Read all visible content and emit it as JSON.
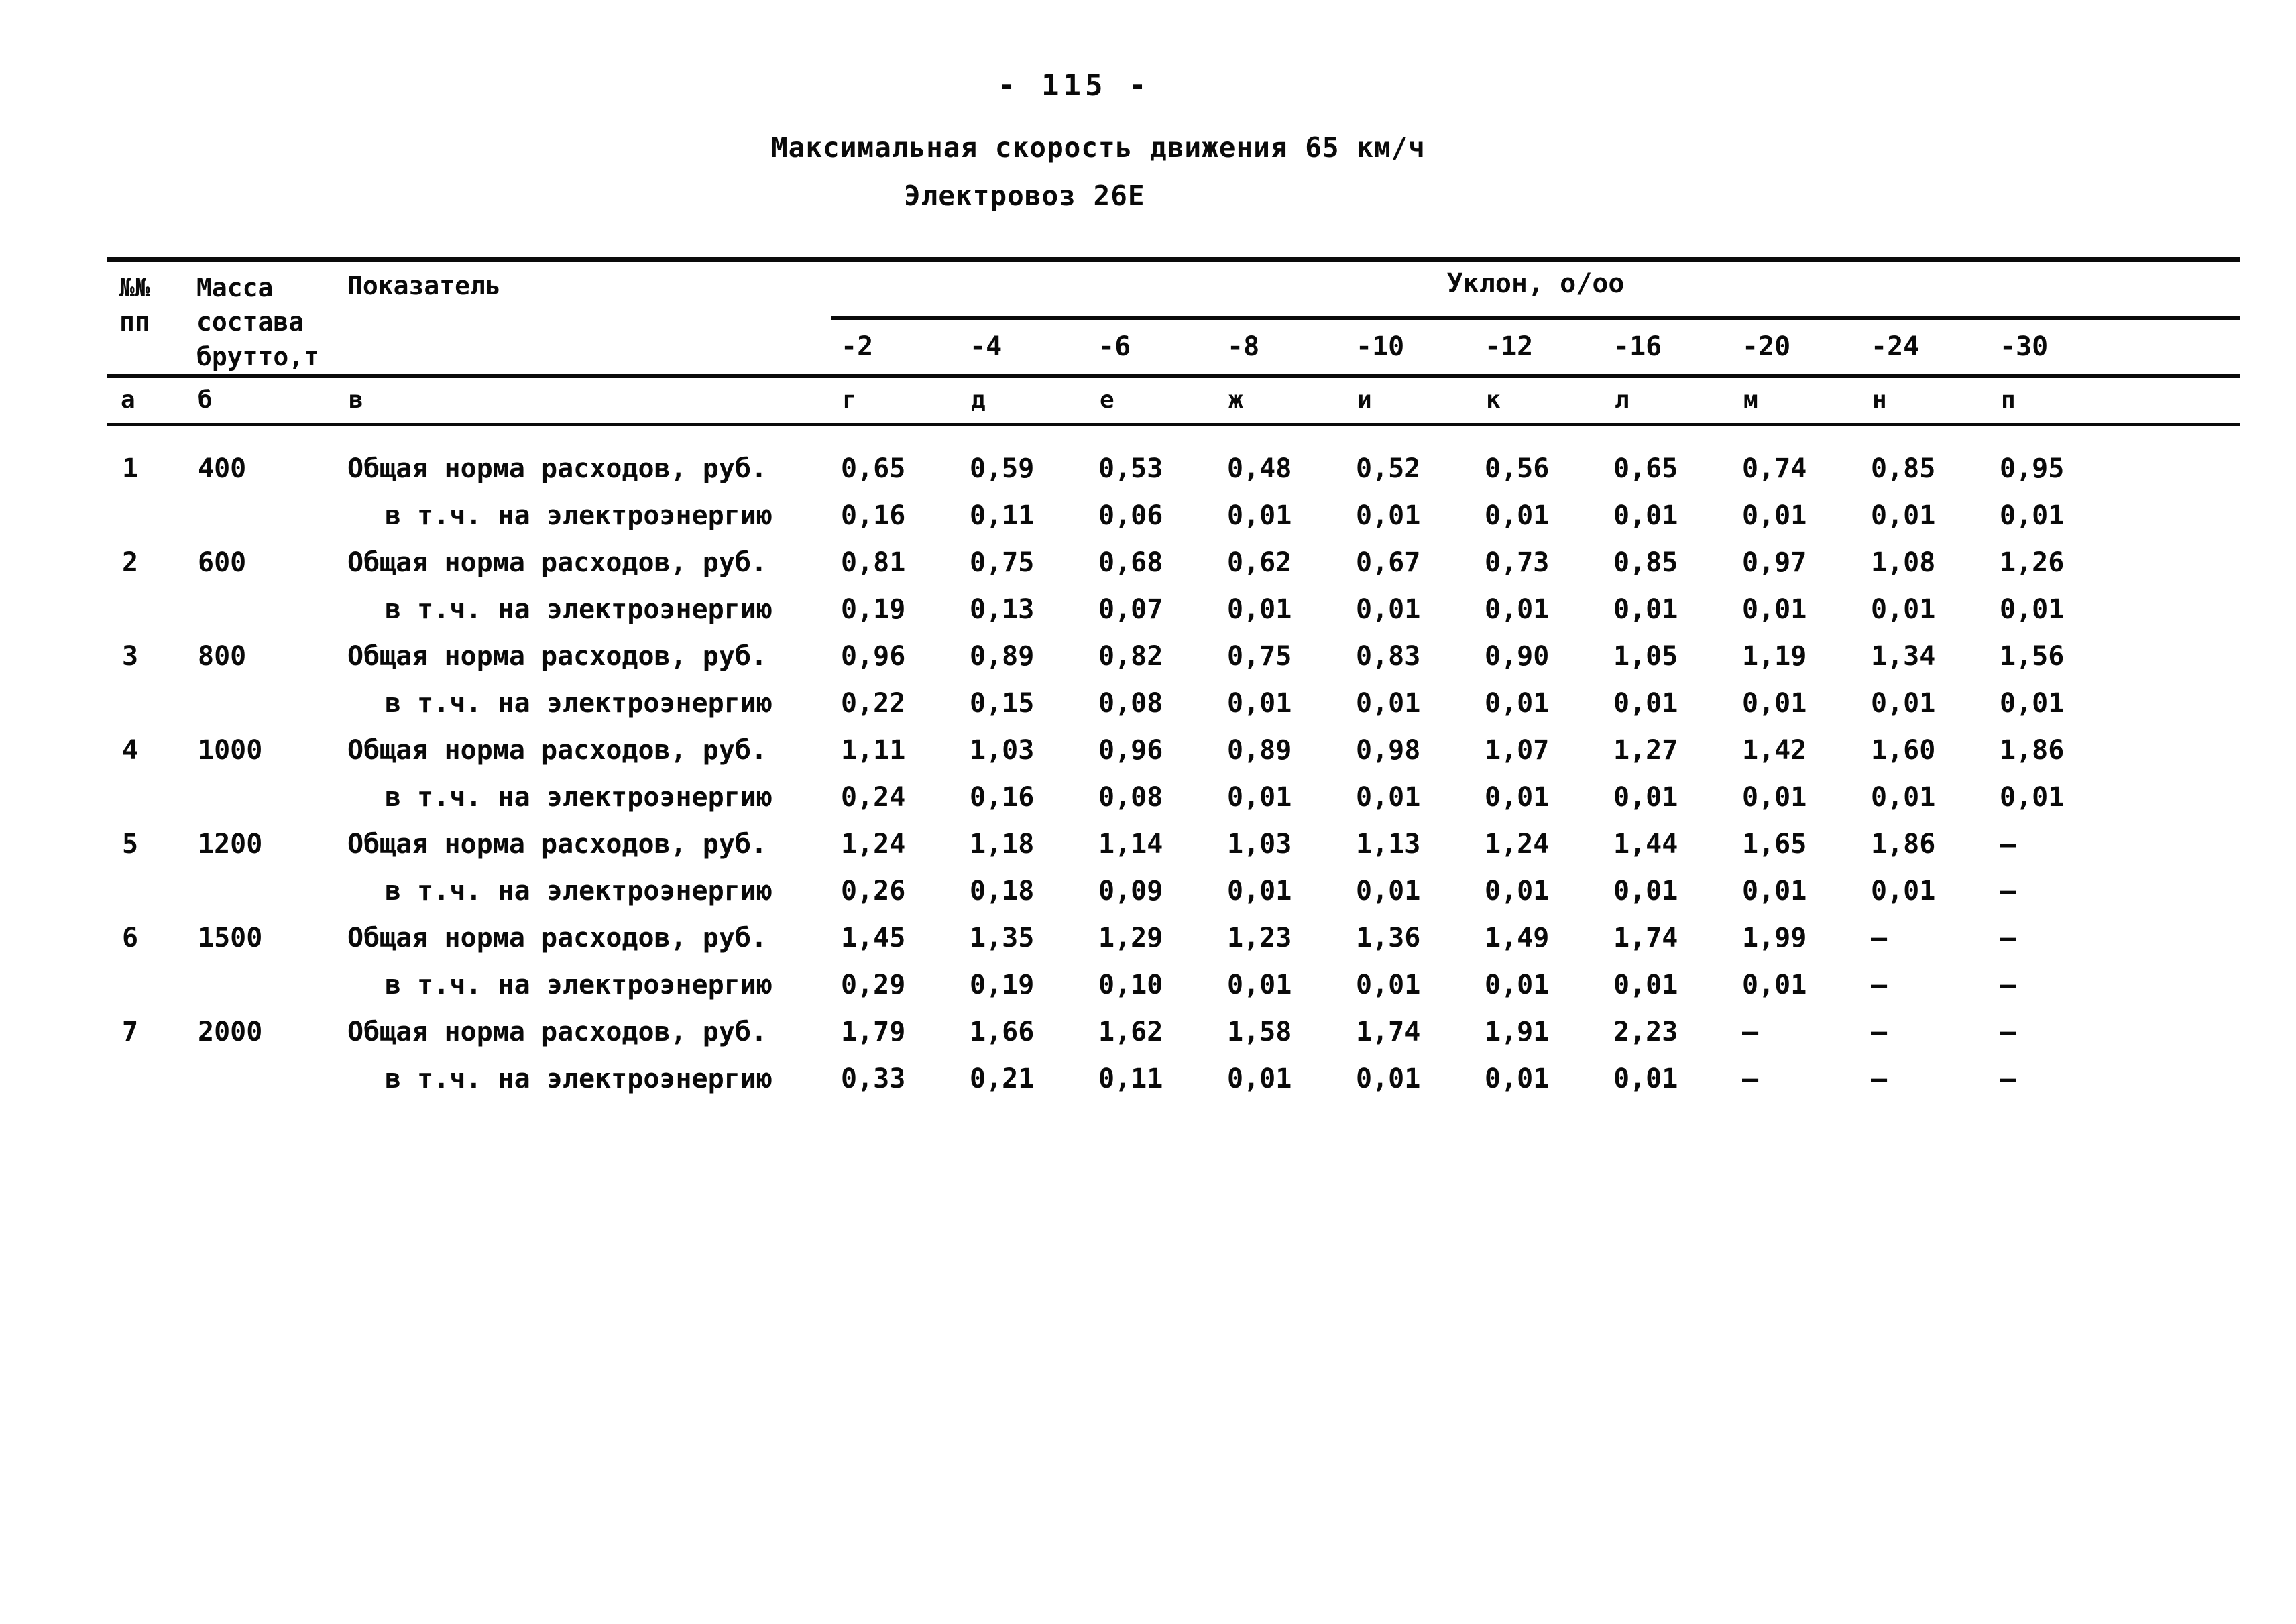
{
  "page": {
    "page_number": "-  115  -",
    "title": "Максимальная скорость движения 65 км/ч",
    "subtitle": "Электровоз 26Е"
  },
  "table": {
    "col_headers": {
      "num": "№№\nпп",
      "mass": "Масса\nсостава\nбрутто,т",
      "indicator": "Показатель",
      "gradient_group": "Уклон, о/оо"
    },
    "gradients": [
      "-2",
      "-4",
      "-6",
      "-8",
      "-10",
      "-12",
      "-16",
      "-20",
      "-24",
      "-30"
    ],
    "letters": [
      "а",
      "б",
      "в",
      "г",
      "д",
      "е",
      "ж",
      "и",
      "к",
      "л",
      "м",
      "н",
      "п"
    ],
    "row_labels": {
      "total": "Общая норма расходов, руб.",
      "sub": "в т.ч. на электроэнергию"
    },
    "rows": [
      {
        "num": "1",
        "mass": "400",
        "total": [
          "0,65",
          "0,59",
          "0,53",
          "0,48",
          "0,52",
          "0,56",
          "0,65",
          "0,74",
          "0,85",
          "0,95"
        ],
        "sub": [
          "0,16",
          "0,11",
          "0,06",
          "0,01",
          "0,01",
          "0,01",
          "0,01",
          "0,01",
          "0,01",
          "0,01"
        ]
      },
      {
        "num": "2",
        "mass": "600",
        "total": [
          "0,81",
          "0,75",
          "0,68",
          "0,62",
          "0,67",
          "0,73",
          "0,85",
          "0,97",
          "1,08",
          "1,26"
        ],
        "sub": [
          "0,19",
          "0,13",
          "0,07",
          "0,01",
          "0,01",
          "0,01",
          "0,01",
          "0,01",
          "0,01",
          "0,01"
        ]
      },
      {
        "num": "3",
        "mass": "800",
        "total": [
          "0,96",
          "0,89",
          "0,82",
          "0,75",
          "0,83",
          "0,90",
          "1,05",
          "1,19",
          "1,34",
          "1,56"
        ],
        "sub": [
          "0,22",
          "0,15",
          "0,08",
          "0,01",
          "0,01",
          "0,01",
          "0,01",
          "0,01",
          "0,01",
          "0,01"
        ]
      },
      {
        "num": "4",
        "mass": "1000",
        "total": [
          "1,11",
          "1,03",
          "0,96",
          "0,89",
          "0,98",
          "1,07",
          "1,27",
          "1,42",
          "1,60",
          "1,86"
        ],
        "sub": [
          "0,24",
          "0,16",
          "0,08",
          "0,01",
          "0,01",
          "0,01",
          "0,01",
          "0,01",
          "0,01",
          "0,01"
        ]
      },
      {
        "num": "5",
        "mass": "1200",
        "total": [
          "1,24",
          "1,18",
          "1,14",
          "1,03",
          "1,13",
          "1,24",
          "1,44",
          "1,65",
          "1,86",
          "–"
        ],
        "sub": [
          "0,26",
          "0,18",
          "0,09",
          "0,01",
          "0,01",
          "0,01",
          "0,01",
          "0,01",
          "0,01",
          "–"
        ]
      },
      {
        "num": "6",
        "mass": "1500",
        "total": [
          "1,45",
          "1,35",
          "1,29",
          "1,23",
          "1,36",
          "1,49",
          "1,74",
          "1,99",
          "–",
          "–"
        ],
        "sub": [
          "0,29",
          "0,19",
          "0,10",
          "0,01",
          "0,01",
          "0,01",
          "0,01",
          "0,01",
          "–",
          "–"
        ]
      },
      {
        "num": "7",
        "mass": "2000",
        "total": [
          "1,79",
          "1,66",
          "1,62",
          "1,58",
          "1,74",
          "1,91",
          "2,23",
          "–",
          "–",
          "–"
        ],
        "sub": [
          "0,33",
          "0,21",
          "0,11",
          "0,01",
          "0,01",
          "0,01",
          "0,01",
          "–",
          "–",
          "–"
        ]
      }
    ]
  }
}
